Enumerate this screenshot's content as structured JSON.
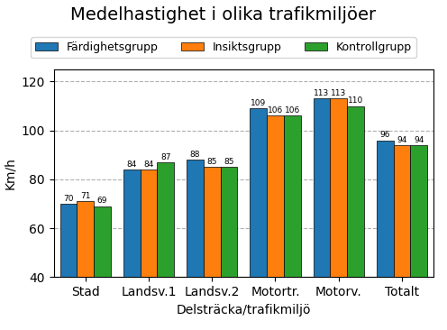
{
  "chart_data": {
    "type": "bar",
    "title": "Medelhastighet i olika trafikmiljöer",
    "categories": [
      "Stad",
      "Landsv.1",
      "Landsv.2",
      "Motortr.",
      "Motorv.",
      "Totalt"
    ],
    "xlabel": "Delsträcka/trafikmiljö",
    "ylabel": "Km/h",
    "series": [
      {
        "name": "Färdighetsgrupp",
        "values": [
          70,
          84,
          88,
          109,
          113,
          96
        ]
      },
      {
        "name": "Insiktsgrupp",
        "values": [
          71,
          84,
          85,
          106,
          113,
          94
        ]
      },
      {
        "name": "Kontrollgrupp",
        "values": [
          69,
          87,
          85,
          106,
          110,
          94
        ]
      }
    ],
    "ylim": [
      40,
      125
    ],
    "yticks": [
      40,
      60,
      80,
      100,
      120
    ],
    "grid": true,
    "legend": "upper center",
    "data_labels": true
  }
}
